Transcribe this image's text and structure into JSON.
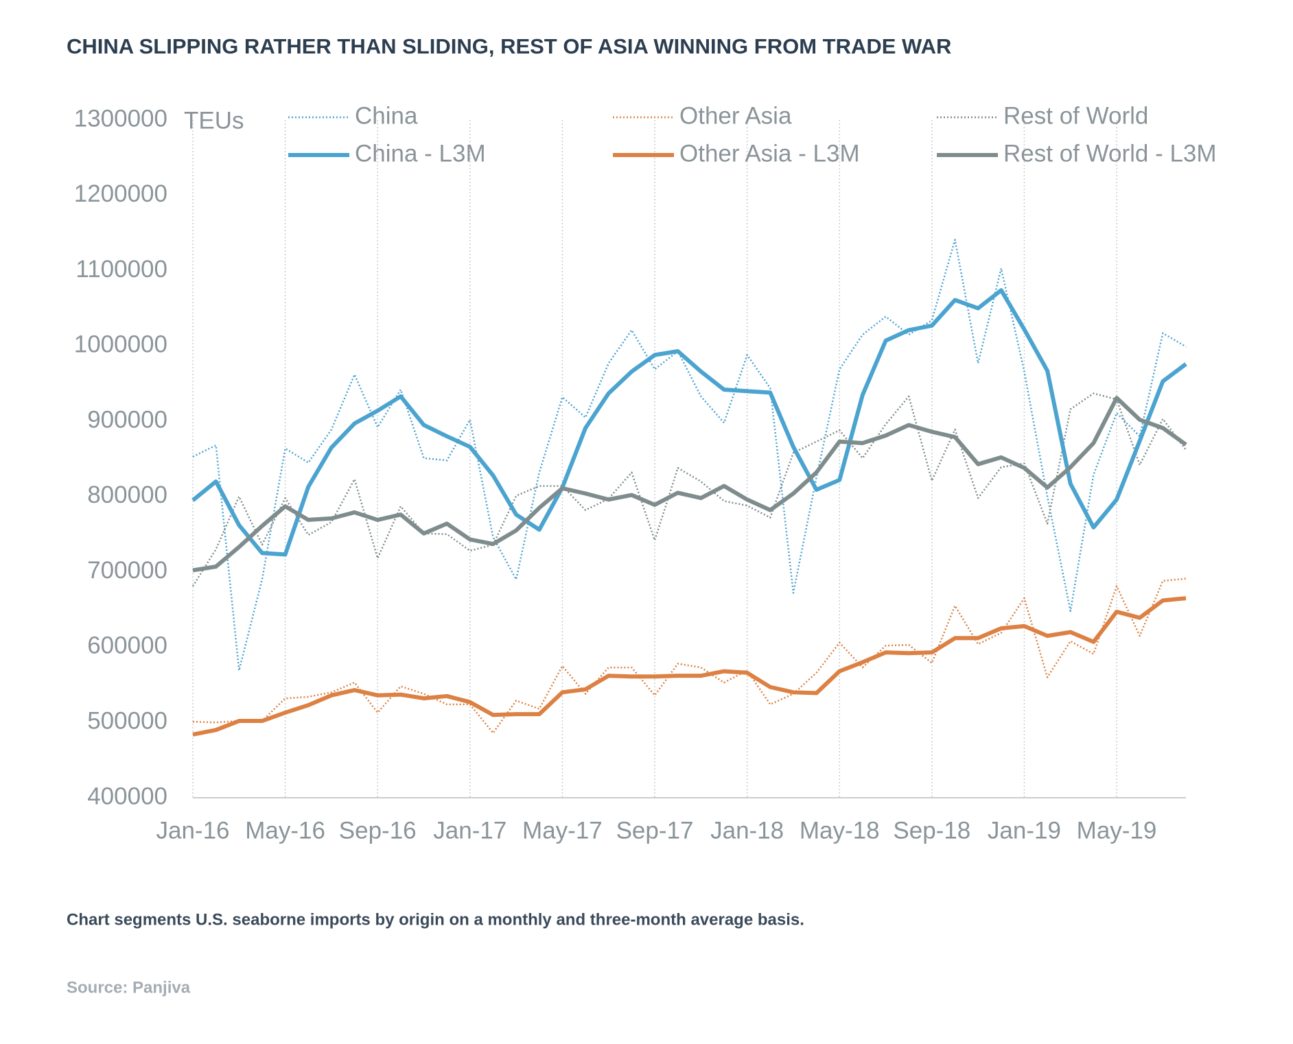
{
  "chart_data": {
    "type": "line",
    "title": "CHINA SLIPPING RATHER THAN SLIDING, REST OF ASIA WINNING FROM TRADE WAR",
    "y_label": "TEUs",
    "caption": "Chart segments U.S. seaborne imports by origin on a monthly and three-month average basis.",
    "source": "Source: Panjiva",
    "categories": [
      "Jan-16",
      null,
      null,
      null,
      "May-16",
      null,
      null,
      null,
      "Sep-16",
      null,
      null,
      null,
      "Jan-17",
      null,
      null,
      null,
      "May-17",
      null,
      null,
      null,
      "Sep-17",
      null,
      null,
      null,
      "Jan-18",
      null,
      null,
      null,
      "May-18",
      null,
      null,
      null,
      "Sep-18",
      null,
      null,
      null,
      "Jan-19",
      null,
      null,
      null,
      "May-19",
      null,
      null,
      null
    ],
    "ylim": [
      400000,
      1300000
    ],
    "yticks": [
      400000,
      500000,
      600000,
      700000,
      800000,
      900000,
      1000000,
      1100000,
      1200000,
      1300000
    ],
    "x_grid": true,
    "series": [
      {
        "name": "China",
        "color": "#4ba3cf",
        "line_style": "dotted",
        "values": [
          853000,
          868000,
          569000,
          690000,
          864000,
          845000,
          889000,
          962000,
          892000,
          942000,
          851000,
          848000,
          902000,
          746000,
          690000,
          832000,
          932000,
          905000,
          977000,
          1021000,
          969000,
          993000,
          933000,
          898000,
          988000,
          944000,
          672000,
          825000,
          969000,
          1015000,
          1039000,
          1015000,
          1034000,
          1141000,
          977000,
          1103000,
          966000,
          800000,
          648000,
          829000,
          911000,
          880000,
          1017000,
          999000
        ]
      },
      {
        "name": "Other Asia",
        "color": "#dc8143",
        "line_style": "dotted",
        "values": [
          501000,
          500000,
          502000,
          502000,
          532000,
          534000,
          540000,
          553000,
          513000,
          548000,
          538000,
          524000,
          524000,
          486000,
          529000,
          518000,
          575000,
          538000,
          573000,
          573000,
          536000,
          578000,
          573000,
          553000,
          569000,
          524000,
          538000,
          566000,
          606000,
          573000,
          602000,
          603000,
          579000,
          655000,
          604000,
          619000,
          665000,
          560000,
          608000,
          591000,
          681000,
          615000,
          688000,
          691000
        ]
      },
      {
        "name": "Rest of World",
        "color": "#7f8c8d",
        "line_style": "dotted",
        "values": [
          681000,
          730000,
          800000,
          736000,
          798000,
          749000,
          766000,
          823000,
          718000,
          787000,
          751000,
          750000,
          728000,
          736000,
          801000,
          814000,
          814000,
          782000,
          797000,
          832000,
          742000,
          838000,
          820000,
          794000,
          788000,
          772000,
          858000,
          873000,
          888000,
          851000,
          896000,
          933000,
          821000,
          889000,
          798000,
          839000,
          844000,
          764000,
          916000,
          937000,
          929000,
          842000,
          903000,
          862000
        ]
      },
      {
        "name": "China - L3M",
        "color": "#4ba3cf",
        "line_style": "solid",
        "values": [
          795000,
          820000,
          762000,
          725000,
          723000,
          813000,
          865000,
          897000,
          914000,
          933000,
          895000,
          880000,
          866000,
          828000,
          776000,
          756000,
          812000,
          891000,
          937000,
          966000,
          988000,
          993000,
          966000,
          942000,
          940000,
          938000,
          866000,
          809000,
          822000,
          935000,
          1007000,
          1021000,
          1027000,
          1061000,
          1050000,
          1074000,
          1022000,
          967000,
          817000,
          759000,
          796000,
          874000,
          953000,
          976000
        ]
      },
      {
        "name": "Other Asia - L3M",
        "color": "#dc8143",
        "line_style": "solid",
        "values": [
          484000,
          490000,
          502000,
          502000,
          513000,
          523000,
          536000,
          543000,
          536000,
          537000,
          532000,
          535000,
          527000,
          510000,
          511000,
          511000,
          540000,
          544000,
          562000,
          561000,
          561000,
          562000,
          562000,
          568000,
          566000,
          547000,
          540000,
          539000,
          568000,
          580000,
          593000,
          592000,
          593000,
          612000,
          612000,
          625000,
          628000,
          615000,
          620000,
          607000,
          647000,
          639000,
          662000,
          665000
        ]
      },
      {
        "name": "Rest of World - L3M",
        "color": "#7f8c8d",
        "line_style": "solid",
        "values": [
          702000,
          707000,
          733000,
          761000,
          787000,
          769000,
          771000,
          779000,
          769000,
          776000,
          751000,
          764000,
          743000,
          737000,
          755000,
          785000,
          811000,
          804000,
          796000,
          802000,
          789000,
          805000,
          798000,
          814000,
          796000,
          782000,
          804000,
          832000,
          873000,
          871000,
          881000,
          895000,
          886000,
          879000,
          843000,
          852000,
          838000,
          812000,
          839000,
          871000,
          931000,
          902000,
          891000,
          869000
        ]
      }
    ]
  }
}
